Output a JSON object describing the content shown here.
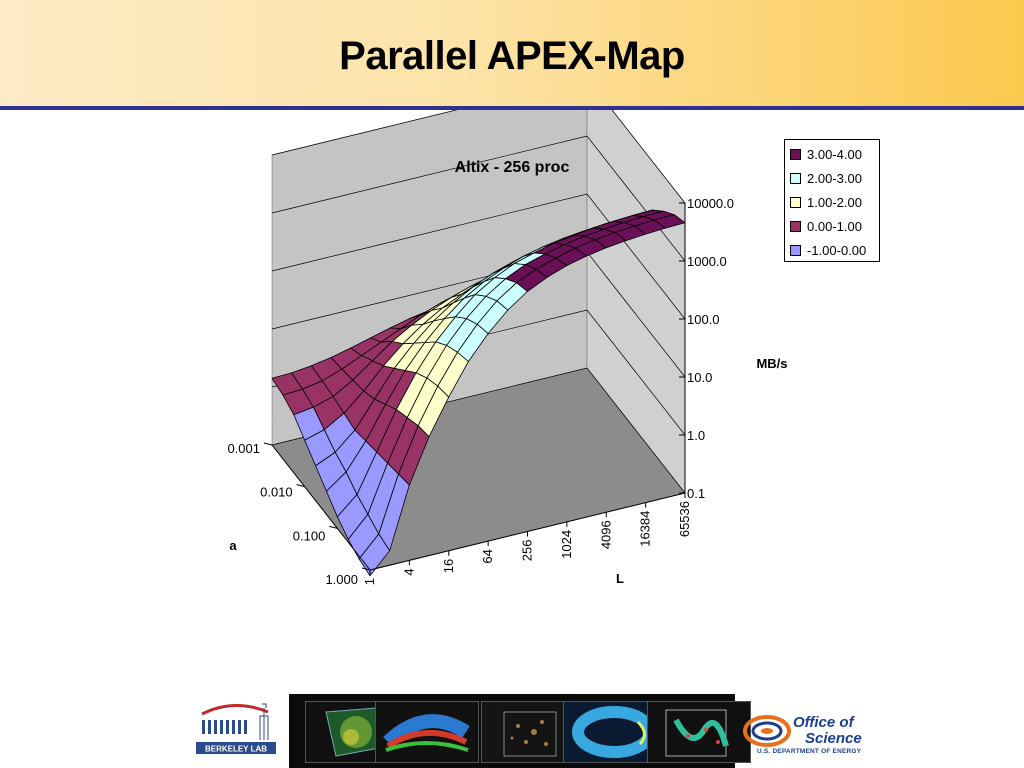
{
  "slide": {
    "title": "Parallel APEX-Map"
  },
  "chart_data": {
    "type": "surface",
    "title": "Altix - 256 proc",
    "xlabel": "L",
    "ylabel": "a",
    "zlabel": "MB/s",
    "z_scale": "log10",
    "zlim": [
      0.1,
      10000.0
    ],
    "z_ticks": [
      "0.1",
      "1.0",
      "10.0",
      "100.0",
      "1000.0",
      "10000.0"
    ],
    "L_ticks": [
      "1",
      "4",
      "16",
      "64",
      "256",
      "1024",
      "4096",
      "16384",
      "65536"
    ],
    "a_ticks": [
      "0.001",
      "0.010",
      "0.100",
      "1.000"
    ],
    "legend_position": "top-right",
    "legend": [
      {
        "label": "3.00-4.00",
        "color": "#6b0f57"
      },
      {
        "label": "2.00-3.00",
        "color": "#ccffff"
      },
      {
        "label": "1.00-2.00",
        "color": "#ffffcc"
      },
      {
        "label": "0.00-1.00",
        "color": "#993366"
      },
      {
        "label": "-1.00-0.00",
        "color": "#9999ff"
      }
    ],
    "grid": {
      "L_values": [
        1,
        2,
        4,
        8,
        16,
        32,
        64,
        128,
        256,
        512,
        1024,
        2048,
        4096,
        8192,
        16384,
        32768,
        65536
      ],
      "a_values": [
        0.001,
        0.002,
        0.005,
        0.01,
        0.02,
        0.05,
        0.1,
        0.2,
        0.5,
        1.0
      ]
    },
    "log10_MBps": [
      [
        0.15,
        0.16,
        0.2,
        0.26,
        0.34,
        0.43,
        0.52,
        0.6,
        0.66,
        0.72,
        0.8,
        0.9,
        1.0,
        1.08,
        1.15,
        1.2,
        1.24
      ],
      [
        0.1,
        0.12,
        0.18,
        0.3,
        0.45,
        0.6,
        0.75,
        0.9,
        1.02,
        1.12,
        1.2,
        1.26,
        1.31,
        1.35,
        1.38,
        1.4,
        1.42
      ],
      [
        0.0,
        0.05,
        0.15,
        0.35,
        0.6,
        0.85,
        1.05,
        1.22,
        1.36,
        1.47,
        1.56,
        1.63,
        1.68,
        1.72,
        1.75,
        1.77,
        1.79
      ],
      [
        -0.2,
        -0.1,
        0.1,
        0.4,
        0.75,
        1.05,
        1.3,
        1.5,
        1.66,
        1.8,
        1.9,
        1.98,
        2.04,
        2.08,
        2.11,
        2.13,
        2.15
      ],
      [
        -0.4,
        -0.25,
        0.05,
        0.5,
        0.95,
        1.3,
        1.6,
        1.83,
        2.02,
        2.17,
        2.28,
        2.36,
        2.42,
        2.46,
        2.49,
        2.51,
        2.52
      ],
      [
        -0.6,
        -0.35,
        0.1,
        0.65,
        1.15,
        1.55,
        1.88,
        2.15,
        2.35,
        2.5,
        2.62,
        2.7,
        2.76,
        2.8,
        2.83,
        2.85,
        2.86
      ],
      [
        -0.8,
        -0.5,
        0.15,
        0.8,
        1.35,
        1.8,
        2.15,
        2.45,
        2.66,
        2.82,
        2.92,
        3.0,
        3.06,
        3.1,
        3.13,
        3.15,
        3.16
      ],
      [
        -0.95,
        -0.6,
        0.2,
        0.9,
        1.5,
        1.98,
        2.36,
        2.66,
        2.88,
        3.04,
        3.14,
        3.22,
        3.28,
        3.32,
        3.35,
        3.37,
        3.38
      ],
      [
        -1.05,
        -0.7,
        0.25,
        1.0,
        1.6,
        2.1,
        2.5,
        2.82,
        3.05,
        3.2,
        3.31,
        3.4,
        3.46,
        3.5,
        3.53,
        3.55,
        3.56
      ],
      [
        -1.1,
        -0.75,
        0.3,
        1.05,
        1.65,
        2.18,
        2.58,
        2.9,
        3.14,
        3.3,
        3.42,
        3.5,
        3.56,
        3.6,
        3.63,
        3.65,
        3.66
      ]
    ]
  },
  "footer": {
    "berkeley_label": "BERKELEY LAB",
    "doe_line1": "Office of",
    "doe_line2": "Science",
    "doe_line3": "U.S. DEPARTMENT OF ENERGY"
  }
}
